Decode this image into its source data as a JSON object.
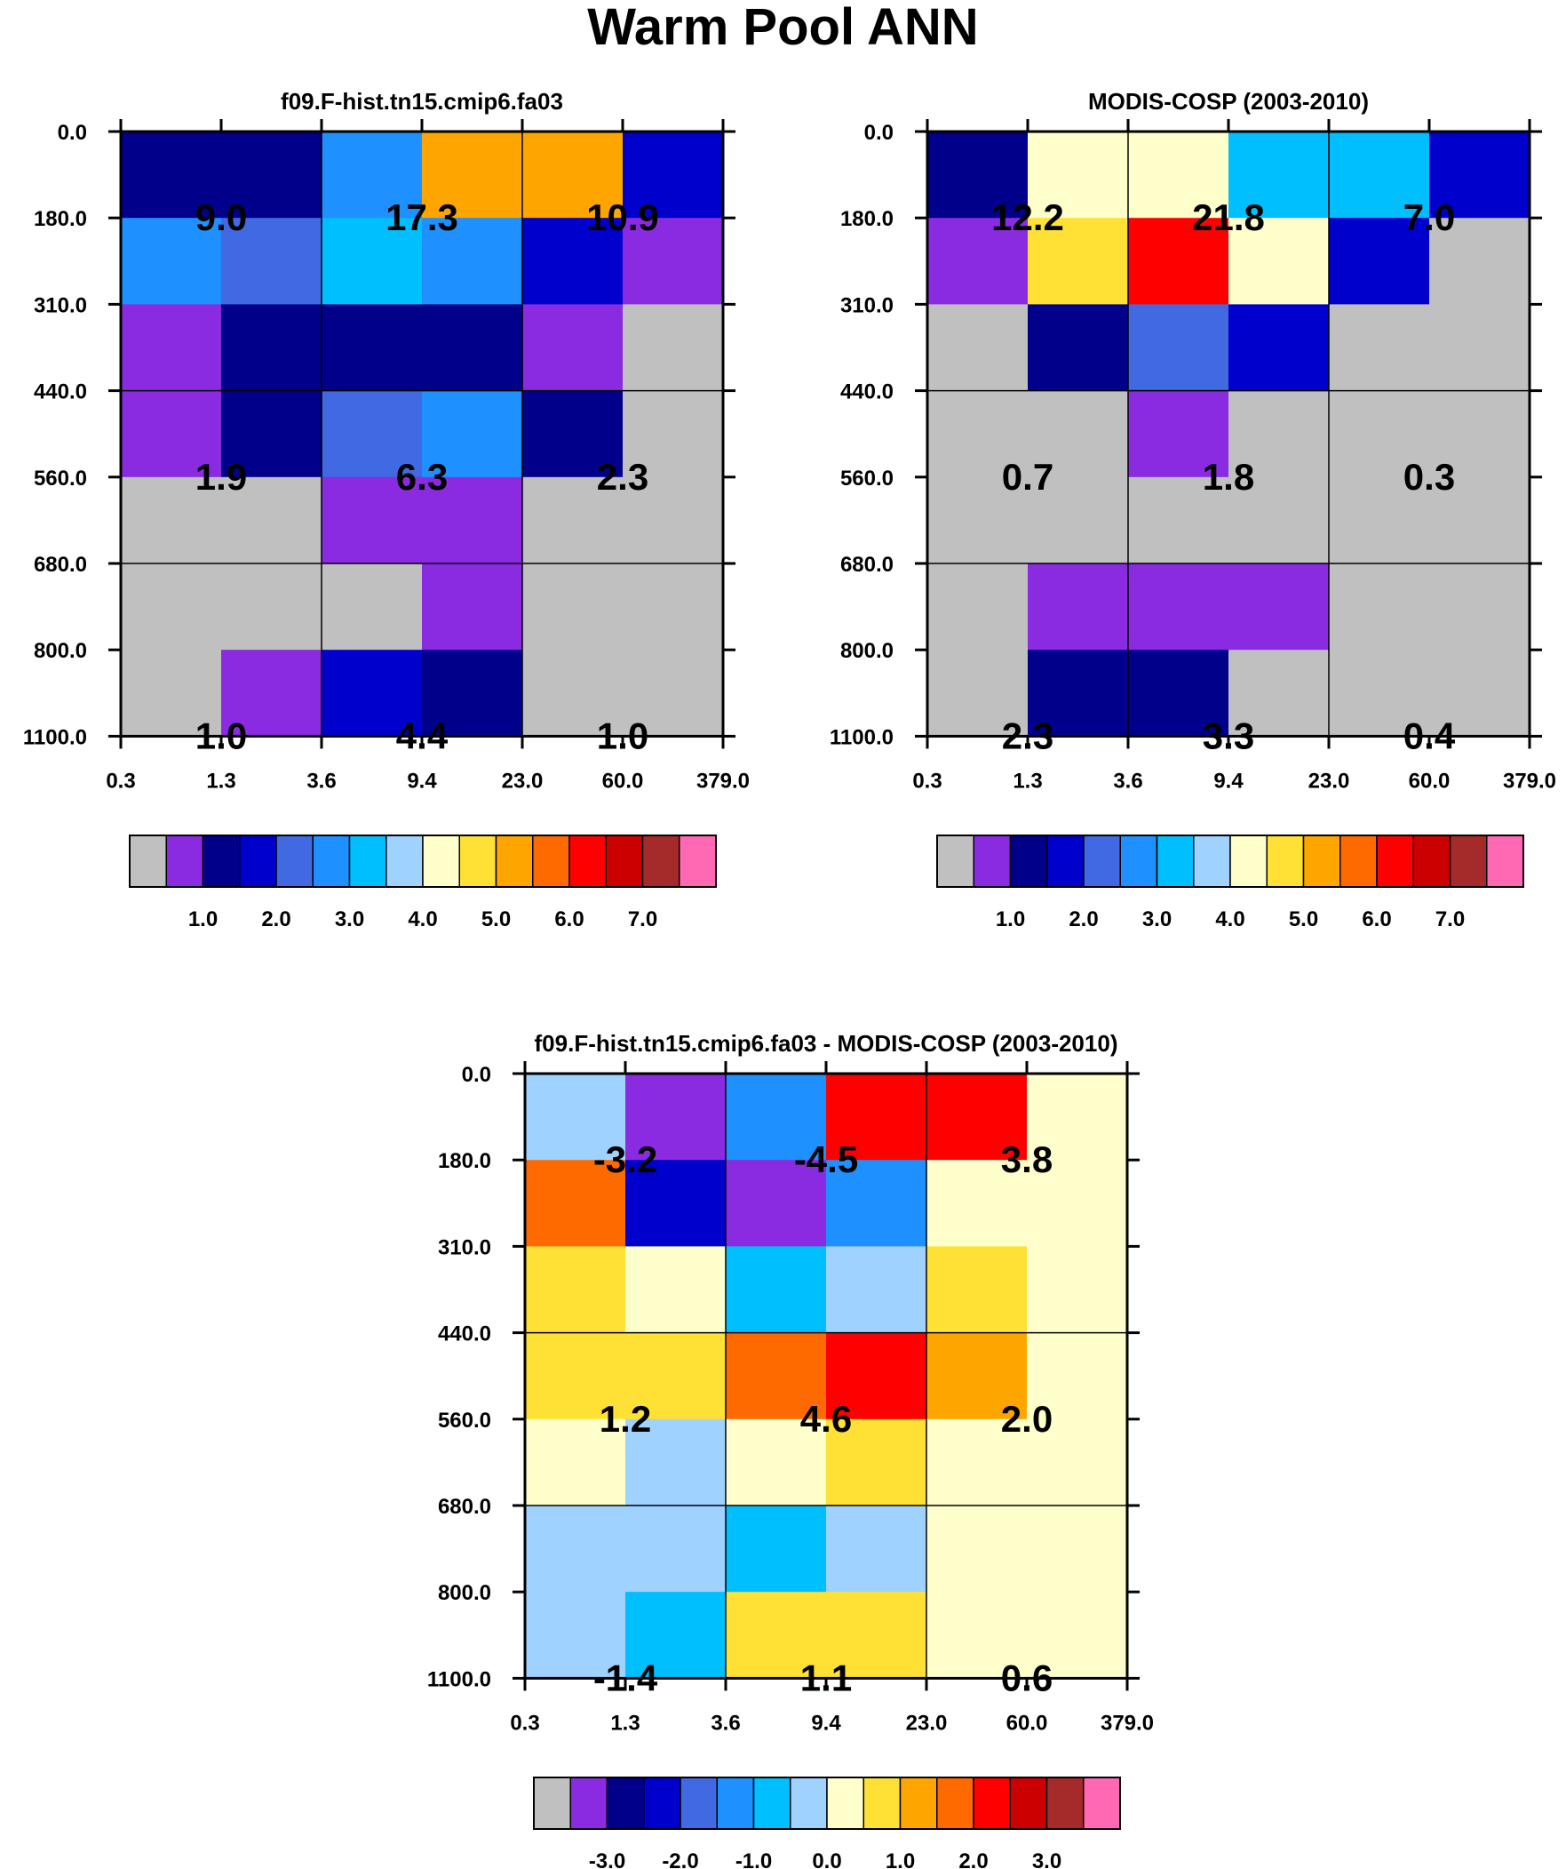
{
  "title": "Warm Pool ANN",
  "palette": [
    "#c0c0c0",
    "#8a2be2",
    "#00008b",
    "#0000cd",
    "#4169e1",
    "#1e90ff",
    "#00bfff",
    "#a0d2ff",
    "#ffffcc",
    "#ffe135",
    "#ffa500",
    "#ff6a00",
    "#ff0000",
    "#cc0000",
    "#a52a2a",
    "#ff69b4"
  ],
  "chart_data": [
    {
      "type": "heatmap",
      "title": "f09.F-hist.tn15.cmip6.fa03",
      "x_ticks": [
        "0.3",
        "1.3",
        "3.6",
        "9.4",
        "23.0",
        "60.0",
        "379.0"
      ],
      "y_ticks": [
        "0.0",
        "180.0",
        "310.0",
        "440.0",
        "560.0",
        "680.0",
        "800.0",
        "1100.0"
      ],
      "cell_colors": [
        [
          2,
          2,
          5,
          10,
          10,
          3
        ],
        [
          5,
          4,
          6,
          5,
          3,
          1
        ],
        [
          1,
          2,
          2,
          2,
          1,
          0
        ],
        [
          1,
          2,
          4,
          5,
          2,
          0
        ],
        [
          0,
          0,
          1,
          1,
          0,
          0
        ],
        [
          0,
          0,
          0,
          1,
          0,
          0
        ],
        [
          0,
          1,
          3,
          2,
          0,
          0
        ]
      ],
      "group_values": [
        [
          "9.0",
          "17.3",
          "10.9"
        ],
        [
          "1.9",
          "6.3",
          "2.3"
        ],
        [
          "1.0",
          "4.4",
          "1.0"
        ]
      ],
      "colorbar_labels": [
        "1.0",
        "2.0",
        "3.0",
        "4.0",
        "5.0",
        "6.0",
        "7.0"
      ]
    },
    {
      "type": "heatmap",
      "title": "MODIS-COSP (2003-2010)",
      "x_ticks": [
        "0.3",
        "1.3",
        "3.6",
        "9.4",
        "23.0",
        "60.0",
        "379.0"
      ],
      "y_ticks": [
        "0.0",
        "180.0",
        "310.0",
        "440.0",
        "560.0",
        "680.0",
        "800.0",
        "1100.0"
      ],
      "cell_colors": [
        [
          2,
          8,
          8,
          6,
          6,
          3
        ],
        [
          1,
          9,
          12,
          8,
          3,
          0
        ],
        [
          0,
          2,
          4,
          3,
          0,
          0
        ],
        [
          0,
          0,
          1,
          0,
          0,
          0
        ],
        [
          0,
          0,
          0,
          0,
          0,
          0
        ],
        [
          0,
          1,
          1,
          1,
          0,
          0
        ],
        [
          0,
          2,
          2,
          0,
          0,
          0
        ]
      ],
      "group_values": [
        [
          "12.2",
          "21.8",
          "7.0"
        ],
        [
          "0.7",
          "1.8",
          "0.3"
        ],
        [
          "2.3",
          "3.3",
          "0.4"
        ]
      ],
      "colorbar_labels": [
        "1.0",
        "2.0",
        "3.0",
        "4.0",
        "5.0",
        "6.0",
        "7.0"
      ]
    },
    {
      "type": "heatmap",
      "title": "f09.F-hist.tn15.cmip6.fa03 - MODIS-COSP (2003-2010)",
      "x_ticks": [
        "0.3",
        "1.3",
        "3.6",
        "9.4",
        "23.0",
        "60.0",
        "379.0"
      ],
      "y_ticks": [
        "0.0",
        "180.0",
        "310.0",
        "440.0",
        "560.0",
        "680.0",
        "800.0",
        "1100.0"
      ],
      "cell_colors": [
        [
          7,
          1,
          5,
          12,
          12,
          8
        ],
        [
          11,
          3,
          1,
          5,
          8,
          8
        ],
        [
          9,
          8,
          6,
          7,
          9,
          8
        ],
        [
          9,
          9,
          11,
          12,
          10,
          8
        ],
        [
          8,
          7,
          8,
          9,
          8,
          8
        ],
        [
          7,
          7,
          6,
          7,
          8,
          8
        ],
        [
          7,
          6,
          9,
          9,
          8,
          8
        ]
      ],
      "group_values": [
        [
          "-3.2",
          "-4.5",
          "3.8"
        ],
        [
          "1.2",
          "4.6",
          "2.0"
        ],
        [
          "-1.4",
          "1.1",
          "0.6"
        ]
      ],
      "colorbar_labels": [
        "-3.0",
        "-2.0",
        "-1.0",
        "0.0",
        "1.0",
        "2.0",
        "3.0"
      ]
    }
  ]
}
